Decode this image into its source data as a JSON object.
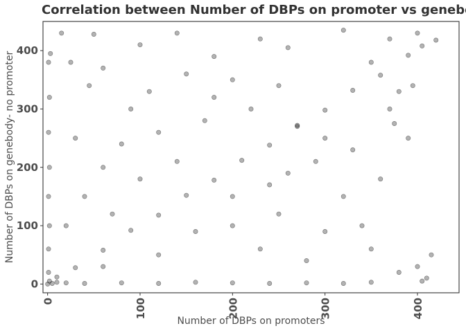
{
  "chart_data": {
    "type": "scatter",
    "title": "Correlation between Number of DBPs on promoter vs genebody without",
    "xlabel": "Number of DBPs on promoters",
    "ylabel": "Number of DBPs on genebody- no promoter",
    "xlim": [
      -5,
      445
    ],
    "ylim": [
      -15,
      450
    ],
    "x_ticks": [
      0,
      100,
      200,
      300,
      400
    ],
    "y_ticks": [
      0,
      100,
      200,
      300,
      400
    ],
    "x_tick_labels": [
      "0",
      "100",
      "200",
      "300",
      "400"
    ],
    "y_tick_labels": [
      "0",
      "100",
      "200",
      "300",
      "400"
    ],
    "grid": false,
    "legend": "none",
    "point_color": "#000000",
    "point_opacity": 0.3,
    "points": [
      [
        0,
        0
      ],
      [
        2,
        5
      ],
      [
        5,
        1
      ],
      [
        10,
        3
      ],
      [
        20,
        2
      ],
      [
        40,
        1
      ],
      [
        80,
        2
      ],
      [
        120,
        1
      ],
      [
        160,
        3
      ],
      [
        200,
        2
      ],
      [
        240,
        1
      ],
      [
        280,
        2
      ],
      [
        320,
        1
      ],
      [
        350,
        3
      ],
      [
        1,
        20
      ],
      [
        1,
        60
      ],
      [
        2,
        100
      ],
      [
        1,
        150
      ],
      [
        2,
        200
      ],
      [
        1,
        260
      ],
      [
        2,
        320
      ],
      [
        1,
        380
      ],
      [
        3,
        395
      ],
      [
        10,
        12
      ],
      [
        30,
        28
      ],
      [
        60,
        58
      ],
      [
        90,
        92
      ],
      [
        120,
        118
      ],
      [
        150,
        152
      ],
      [
        180,
        178
      ],
      [
        210,
        212
      ],
      [
        240,
        238
      ],
      [
        270,
        272
      ],
      [
        300,
        298
      ],
      [
        330,
        332
      ],
      [
        360,
        358
      ],
      [
        390,
        392
      ],
      [
        405,
        408
      ],
      [
        420,
        418
      ],
      [
        15,
        430
      ],
      [
        50,
        428
      ],
      [
        100,
        410
      ],
      [
        140,
        430
      ],
      [
        180,
        390
      ],
      [
        230,
        420
      ],
      [
        260,
        405
      ],
      [
        320,
        435
      ],
      [
        370,
        420
      ],
      [
        400,
        430
      ],
      [
        25,
        380
      ],
      [
        60,
        370
      ],
      [
        45,
        340
      ],
      [
        110,
        330
      ],
      [
        90,
        300
      ],
      [
        150,
        360
      ],
      [
        200,
        350
      ],
      [
        250,
        340
      ],
      [
        180,
        320
      ],
      [
        220,
        300
      ],
      [
        30,
        250
      ],
      [
        80,
        240
      ],
      [
        120,
        260
      ],
      [
        170,
        280
      ],
      [
        60,
        200
      ],
      [
        100,
        180
      ],
      [
        140,
        210
      ],
      [
        40,
        150
      ],
      [
        70,
        120
      ],
      [
        20,
        100
      ],
      [
        200,
        150
      ],
      [
        250,
        120
      ],
      [
        300,
        90
      ],
      [
        350,
        60
      ],
      [
        380,
        20
      ],
      [
        230,
        60
      ],
      [
        280,
        40
      ],
      [
        320,
        150
      ],
      [
        360,
        180
      ],
      [
        390,
        250
      ],
      [
        330,
        230
      ],
      [
        290,
        210
      ],
      [
        260,
        190
      ],
      [
        370,
        300
      ],
      [
        395,
        340
      ],
      [
        380,
        330
      ],
      [
        300,
        250
      ],
      [
        270,
        270
      ],
      [
        340,
        100
      ],
      [
        410,
        10
      ],
      [
        400,
        30
      ],
      [
        415,
        50
      ],
      [
        405,
        5
      ],
      [
        160,
        90
      ],
      [
        120,
        50
      ],
      [
        60,
        30
      ],
      [
        200,
        100
      ],
      [
        240,
        170
      ],
      [
        350,
        380
      ],
      [
        375,
        275
      ]
    ]
  }
}
